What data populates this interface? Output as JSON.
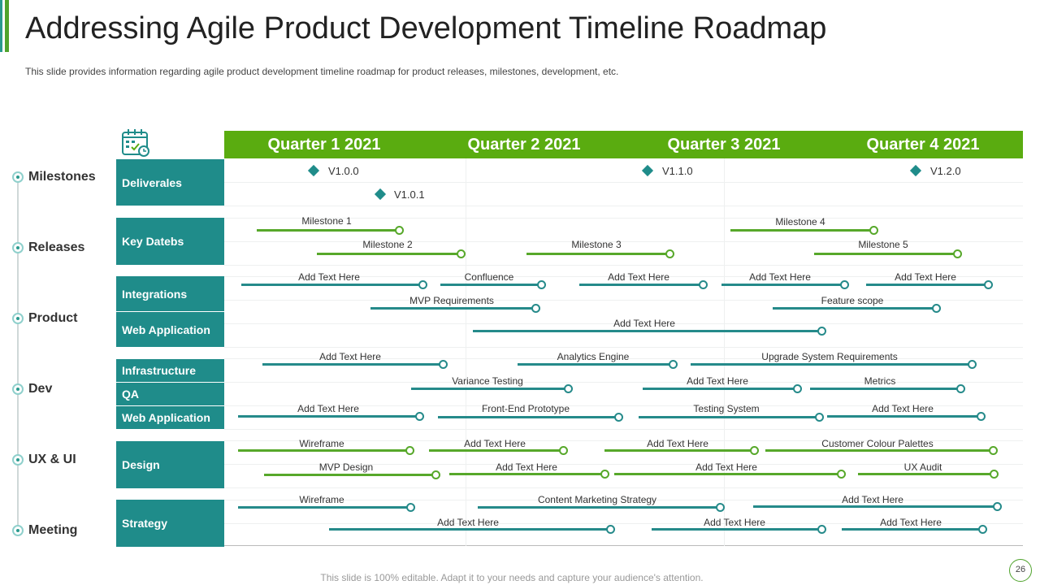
{
  "title": "Addressing Agile Product Development Timeline Roadmap",
  "subtitle": "This slide provides  information  regarding  agile product development  timeline roadmap  for product releases,  milestones, development,  etc.",
  "footer": "This slide is 100% editable. Adapt it to your needs and capture your audience's attention.",
  "page_number": "26",
  "colors": {
    "green": "#5aac10",
    "teal": "#1f8c8a",
    "green_bar": "#57a82a",
    "teal_bar": "#258a8a"
  },
  "quarters": [
    "Quarter 1 2021",
    "Quarter 2 2021",
    "Quarter 3 2021",
    "Quarter 4 2021"
  ],
  "sidebar": [
    "Milestones",
    "Releases",
    "Product",
    "Dev",
    "UX & UI",
    "Meeting"
  ],
  "categories": [
    "Deliverales",
    "Key Datebs",
    "Integrations",
    "Web Application",
    "Infrastructure",
    "QA",
    "Web Application",
    "Design",
    "Strategy"
  ],
  "versions": [
    "V1.0.0",
    "V1.1.0",
    "V1.2.0",
    "V1.0.1"
  ],
  "bars": [
    "Milestone 1",
    "Milestone 4",
    "Milestone 2",
    "Milestone 3",
    "Milestone 5",
    "Add Text Here",
    "Confluence",
    "Add Text Here",
    "Add Text Here",
    "Add Text Here",
    "MVP  Requirements",
    "Feature scope",
    "Add Text Here",
    "Add Text Here",
    "Analytics Engine",
    "Upgrade System Requirements",
    "Variance Testing",
    "Add Text Here",
    "Metrics",
    "Add Text Here",
    "Front-End Prototype",
    "Testing System",
    "Add Text Here",
    "Wireframe",
    "Add Text Here",
    "Add Text Here",
    "Customer Colour Palettes",
    "MVP  Design",
    "Add Text Here",
    "Add Text Here",
    "UX Audit",
    "Wireframe",
    "Content Marketing Strategy",
    "Add Text Here",
    "Add Text Here",
    "Add Text Here",
    "Add Text Here"
  ]
}
